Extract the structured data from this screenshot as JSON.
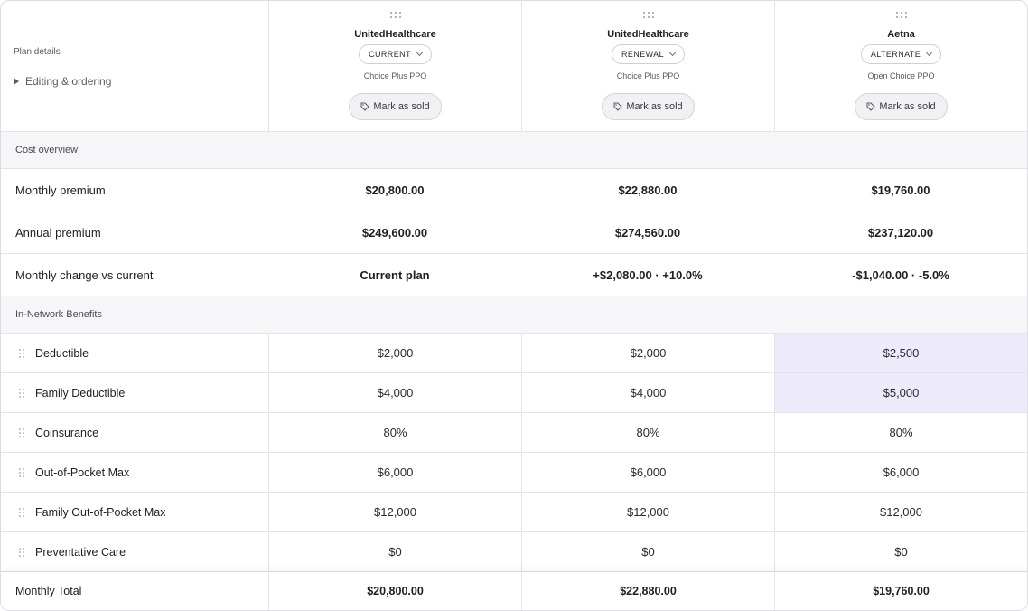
{
  "header": {
    "plan_details_label": "Plan details",
    "editing_label": "Editing & ordering",
    "plans": [
      {
        "carrier": "UnitedHealthcare",
        "status": "CURRENT",
        "plan_name": "Choice Plus PPO",
        "sold_label": "Mark as sold"
      },
      {
        "carrier": "UnitedHealthcare",
        "status": "RENEWAL",
        "plan_name": "Choice Plus PPO",
        "sold_label": "Mark as sold"
      },
      {
        "carrier": "Aetna",
        "status": "ALTERNATE",
        "plan_name": "Open Choice PPO",
        "sold_label": "Mark as sold"
      }
    ]
  },
  "cost_overview": {
    "title": "Cost overview",
    "rows": [
      {
        "label": "Monthly premium",
        "values": [
          "$20,800.00",
          "$22,880.00",
          "$19,760.00"
        ]
      },
      {
        "label": "Annual premium",
        "values": [
          "$249,600.00",
          "$274,560.00",
          "$237,120.00"
        ]
      },
      {
        "label": "Monthly change vs current",
        "values": [
          "Current plan",
          "+$2,080.00 · +10.0%",
          "-$1,040.00 · -5.0%"
        ]
      }
    ]
  },
  "benefits": {
    "title": "In-Network Benefits",
    "rows": [
      {
        "label": "Deductible",
        "values": [
          "$2,000",
          "$2,000",
          "$2,500"
        ],
        "highlight": [
          false,
          false,
          true
        ]
      },
      {
        "label": "Family Deductible",
        "values": [
          "$4,000",
          "$4,000",
          "$5,000"
        ],
        "highlight": [
          false,
          false,
          true
        ]
      },
      {
        "label": "Coinsurance",
        "values": [
          "80%",
          "80%",
          "80%"
        ],
        "highlight": [
          false,
          false,
          false
        ]
      },
      {
        "label": "Out-of-Pocket Max",
        "values": [
          "$6,000",
          "$6,000",
          "$6,000"
        ],
        "highlight": [
          false,
          false,
          false
        ]
      },
      {
        "label": "Family Out-of-Pocket Max",
        "values": [
          "$12,000",
          "$12,000",
          "$12,000"
        ],
        "highlight": [
          false,
          false,
          false
        ]
      },
      {
        "label": "Preventative Care",
        "values": [
          "$0",
          "$0",
          "$0"
        ],
        "highlight": [
          false,
          false,
          false
        ]
      }
    ]
  },
  "footer": {
    "label": "Monthly Total",
    "values": [
      "$20,800.00",
      "$22,880.00",
      "$19,760.00"
    ]
  },
  "colors": {
    "highlight": "#edebfa",
    "section_bg": "#f6f6f8",
    "border": "#e3e3e8"
  },
  "icons": {
    "column_drag": "grip-icon",
    "row_drag": "drag-handle-icon",
    "sold": "tag-icon",
    "expand": "triangle-right-icon",
    "dropdown": "chevron-down-icon"
  }
}
